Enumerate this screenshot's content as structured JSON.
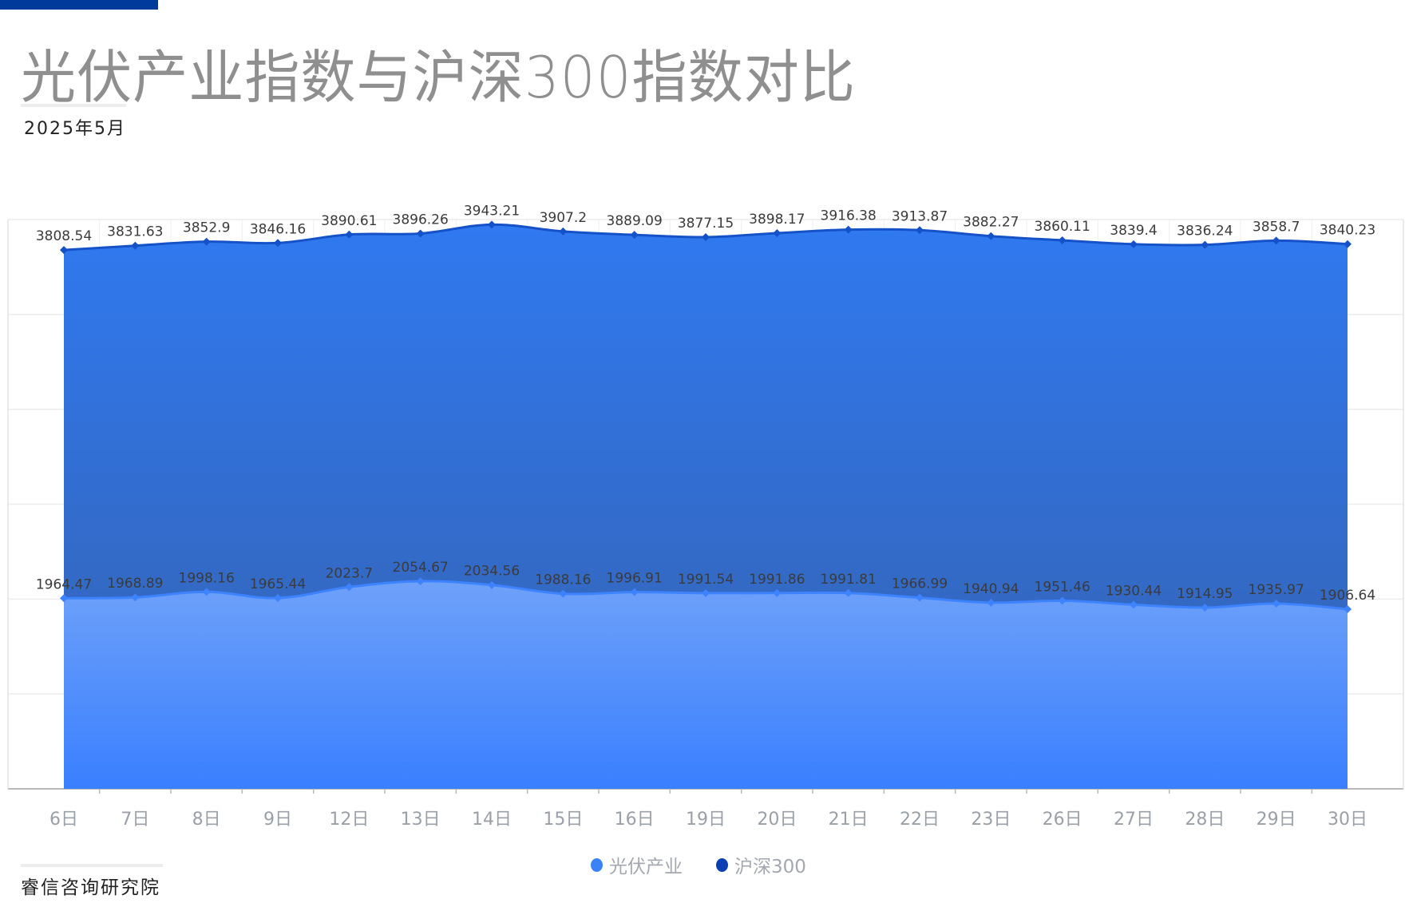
{
  "header": {
    "title": "光伏产业指数与沪深300指数对比",
    "subtitle": "2025年5月"
  },
  "legend": [
    {
      "label": "光伏产业",
      "color": "#3b82f6"
    },
    {
      "label": "沪深300",
      "color": "#0b3fb4"
    }
  ],
  "footer": {
    "source": "睿信咨询研究院"
  },
  "colors": {
    "accent_bar": "#003a9a",
    "csi300_fill_top": "#3079f0",
    "csi300_fill_bottom": "#3561ad",
    "csi300_line": "#1552c8",
    "pv_fill_top": "#6ea1f9",
    "pv_fill_bottom": "#3a7fff",
    "pv_line": "#3d82ff"
  },
  "chart_data": {
    "type": "area",
    "title": "光伏产业指数与沪深300指数对比",
    "subtitle": "2025年5月",
    "xlabel": "",
    "ylabel": "",
    "categories": [
      "6日",
      "7日",
      "8日",
      "9日",
      "12日",
      "13日",
      "14日",
      "15日",
      "16日",
      "19日",
      "20日",
      "21日",
      "22日",
      "23日",
      "26日",
      "27日",
      "28日",
      "29日",
      "30日"
    ],
    "series": [
      {
        "name": "光伏产业",
        "values": [
          1964.47,
          1968.89,
          1998.16,
          1965.44,
          2023.7,
          2054.67,
          2034.56,
          1988.16,
          1996.91,
          1991.54,
          1991.86,
          1991.81,
          1966.99,
          1940.94,
          1951.46,
          1930.44,
          1914.95,
          1935.97,
          1906.64
        ]
      },
      {
        "name": "沪深300",
        "values": [
          3808.54,
          3831.63,
          3852.9,
          3846.16,
          3890.61,
          3896.26,
          3943.21,
          3907.2,
          3889.09,
          3877.15,
          3898.17,
          3916.38,
          3913.87,
          3882.27,
          3860.11,
          3839.4,
          3836.24,
          3858.7,
          3840.23
        ]
      }
    ],
    "ylim": [
      955,
      3970
    ],
    "grid": true,
    "y_axis_labels_visible": false,
    "legend_position": "bottom-center",
    "data_labels": true
  }
}
